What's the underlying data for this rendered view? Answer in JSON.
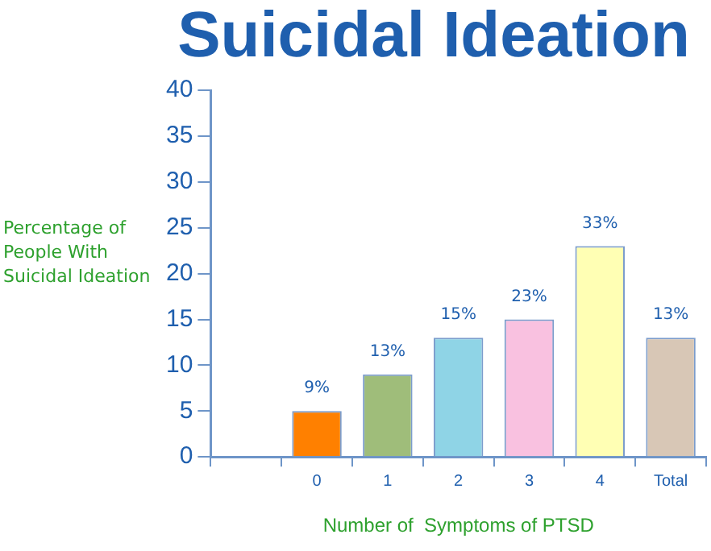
{
  "chart_data": {
    "type": "bar",
    "title": "Suicidal Ideation",
    "xlabel": "Number of  Symptoms of PTSD",
    "ylabel": "Percentage of People With Suicidal Ideation",
    "categories": [
      null,
      "0",
      "1",
      "2",
      "3",
      "4",
      "Total"
    ],
    "values": [
      null,
      5,
      9,
      13,
      15,
      23,
      13
    ],
    "colors": [
      "#ffffff",
      "#ff8000",
      "#9fbd7a",
      "#8fd4e6",
      "#f9c1e0",
      "#ffffb4",
      "#d8c7b6"
    ],
    "annotations": [
      {
        "text": "9%",
        "x": "0",
        "y": 5
      },
      {
        "text": "13%",
        "x": "1",
        "y": 9
      },
      {
        "text": "15%",
        "x": "2",
        "y": 13
      },
      {
        "text": "23%",
        "x": "3",
        "y": 15
      },
      {
        "text": "33%",
        "x": "4",
        "y": 23
      },
      {
        "text": "13%",
        "x": "Total",
        "y": 13
      }
    ],
    "ylim": [
      0,
      40
    ],
    "yticks": [
      0,
      5,
      10,
      15,
      20,
      25,
      30,
      35,
      40
    ],
    "grid": false,
    "legend": false
  }
}
